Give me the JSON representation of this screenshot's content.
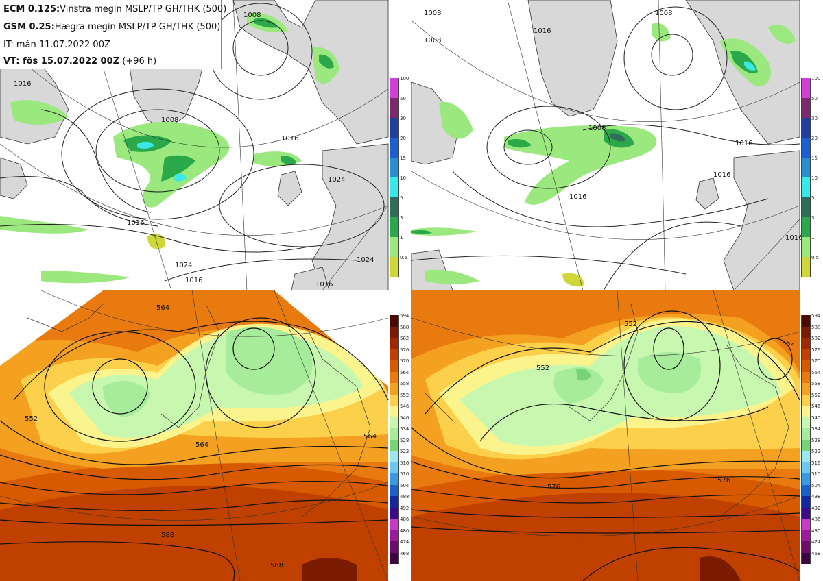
{
  "legend": {
    "ecm_model": "ECM 0.125:",
    "ecm_desc": "Vinstra megin MSLP/TP GH/THK (500)",
    "gsm_model": "GSM 0.25:",
    "gsm_desc": "Hægra megin MSLP/TP GH/THK (500)",
    "init_time": "IT: mán 11.07.2022 00Z",
    "valid_prefix": "VT: fös 15.07.2022 00Z",
    "valid_suffix": "(+96 h)"
  },
  "colors": {
    "land": "#d8d8d8",
    "sea": "#ffffff",
    "contour": "#222222",
    "coast": "#333333"
  },
  "precip_scale": {
    "labels": [
      "100",
      "50",
      "30",
      "20",
      "15",
      "10",
      "5",
      "3",
      "1",
      "0.5"
    ],
    "colors": [
      "#d23fd8",
      "#7a2a6a",
      "#1f3fa0",
      "#1c5fd0",
      "#2a8fd0",
      "#39e8e8",
      "#2f6e5a",
      "#2aa84a",
      "#9ae87e",
      "#cfd63a"
    ]
  },
  "thk_scale": {
    "labels": [
      "594",
      "588",
      "582",
      "576",
      "570",
      "564",
      "558",
      "552",
      "546",
      "540",
      "534",
      "528",
      "522",
      "516",
      "510",
      "504",
      "498",
      "492",
      "486",
      "480",
      "474",
      "468"
    ],
    "colors": [
      "#4a0a00",
      "#7a1a00",
      "#a02800",
      "#c04000",
      "#d85a00",
      "#e87a10",
      "#f4a020",
      "#fcd04a",
      "#fbf48c",
      "#c8f8b0",
      "#a6ec9a",
      "#76d476",
      "#9ee6f0",
      "#6cc8ee",
      "#3e98e0",
      "#1e60c8",
      "#12289c",
      "#3a0c8a",
      "#c83ac8",
      "#9a1c9a",
      "#6c0c6c",
      "#3c063c"
    ]
  },
  "maps": {
    "tl": {
      "isobar_labels": [
        "1008",
        "1016",
        "1016",
        "1024",
        "1024",
        "1024",
        "1016",
        "1016",
        "1016",
        "1008"
      ]
    },
    "tr": {
      "isobar_labels": [
        "1008",
        "1008",
        "1016",
        "1016",
        "1016",
        "1008",
        "1016",
        "1008",
        "1016"
      ]
    },
    "bl": {
      "gh_labels": [
        "564",
        "552",
        "564",
        "564",
        "588",
        "588"
      ]
    },
    "br": {
      "gh_labels": [
        "552",
        "552",
        "576",
        "576",
        "552"
      ]
    }
  }
}
